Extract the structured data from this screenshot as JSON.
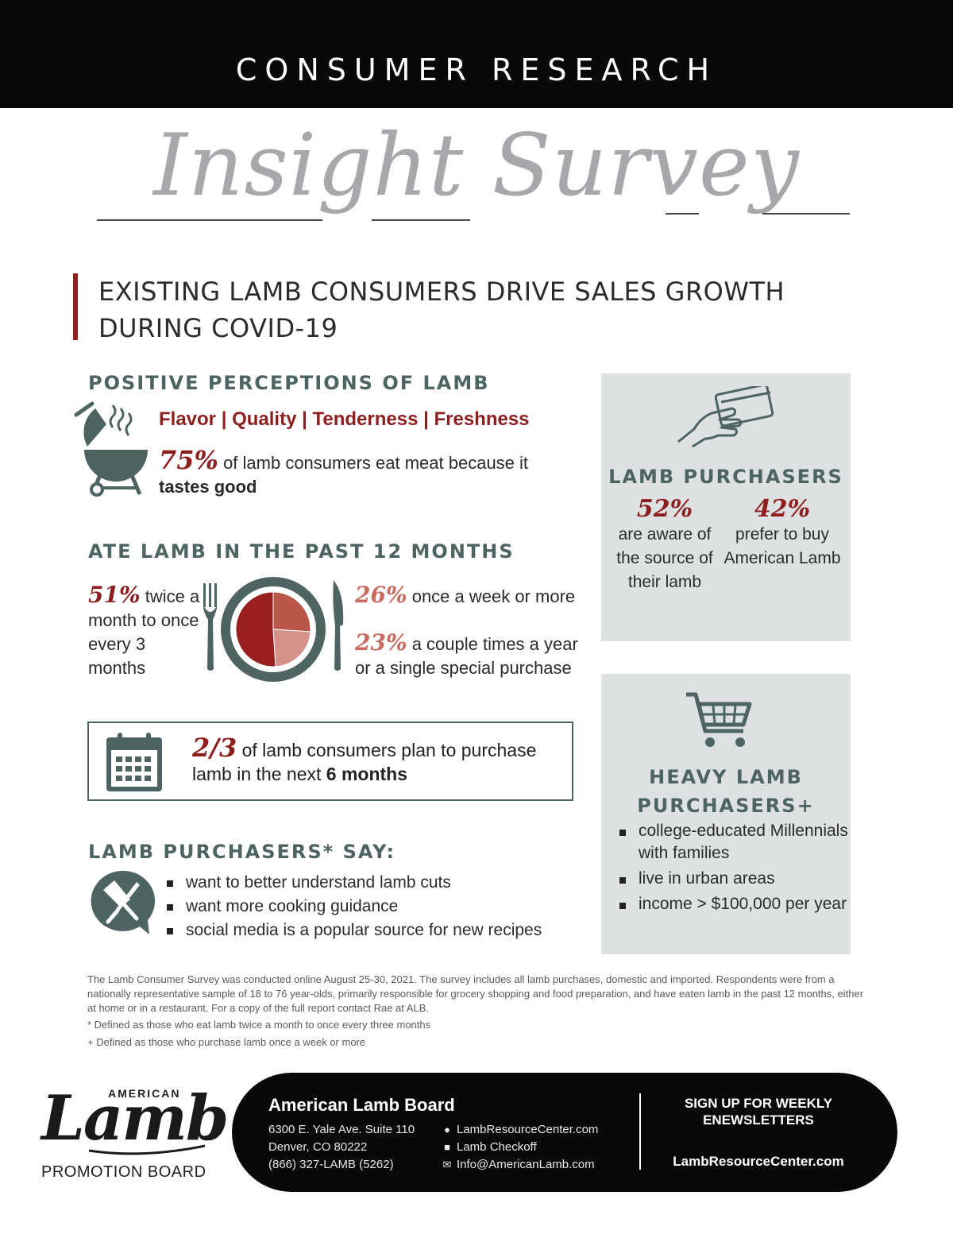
{
  "header": {
    "kicker": "CONSUMER RESEARCH",
    "title": "Insight Survey"
  },
  "headline": {
    "line1": "EXISTING LAMB CONSUMERS DRIVE SALES GROWTH",
    "line2": "DURING COVID-19"
  },
  "perceptions": {
    "heading": "POSITIVE PERCEPTIONS OF LAMB",
    "attributes": "Flavor | Quality | Tenderness | Freshness",
    "stat_pct": "75%",
    "stat_text": "of lamb consumers eat meat because it",
    "stat_bold": "tastes good"
  },
  "ate": {
    "heading": "ATE LAMB IN THE PAST 12 MONTHS",
    "left_pct": "51%",
    "left_word": "twice",
    "left_rest": "a month to once every 3 months",
    "r1_pct": "26%",
    "r1_text": "once a week or more",
    "r2_pct": "23%",
    "r2_text": "a couple times a year or a single special purchase"
  },
  "chart_data": {
    "type": "pie",
    "categories": [
      "twice a month to once every 3 months",
      "once a week or more",
      "a couple times a year or a single special purchase"
    ],
    "values": [
      51,
      26,
      23
    ],
    "colors": [
      "#9a1f1f",
      "#b9574a",
      "#d6918a"
    ]
  },
  "plan": {
    "fraction": "2/3",
    "text": "of lamb consumers plan to purchase lamb in the next",
    "bold": "6 months"
  },
  "say": {
    "heading": "LAMB PURCHASERS* SAY:",
    "items": [
      "want to better understand lamb cuts",
      "want more cooking guidance",
      "social media is a popular source for new recipes"
    ]
  },
  "card_purchasers": {
    "heading": "LAMB PURCHASERS",
    "stat1_pct": "52%",
    "stat1_text": "are aware of the source of their lamb",
    "stat2_pct": "42%",
    "stat2_text": "prefer to buy American Lamb"
  },
  "card_heavy": {
    "heading_line1": "HEAVY LAMB",
    "heading_line2": "PURCHASERS+",
    "items": [
      "college-educated Millennials with families",
      "live in urban areas",
      "income > $100,000 per year"
    ]
  },
  "footnotes": {
    "methodology": "The Lamb Consumer Survey was conducted online August 25-30, 2021. The survey includes all lamb purchases, domestic and imported. Respondents were from a nationally representative sample of 18 to 76 year-olds, primarily responsible for grocery shopping and food preparation, and have eaten lamb in the past 12 months, either at home or in a restaurant. For a copy of the full report contact Rae at ALB.",
    "asterisk": "* Defined as those who eat lamb twice a month to once every three months",
    "plus": "+ Defined as those who purchase lamb once a week or more"
  },
  "brand": {
    "top": "AMERICAN",
    "script": "Lamb",
    "bottom": "PROMOTION BOARD"
  },
  "contact": {
    "org": "American Lamb Board",
    "address1": "6300 E. Yale Ave. Suite 110",
    "address2": "Denver, CO 80222",
    "phone": "(866) 327-LAMB (5262)",
    "web": "LambResourceCenter.com",
    "facebook": "Lamb Checkoff",
    "email": "Info@AmericanLamb.com",
    "signup": "SIGN UP FOR WEEKLY ENEWSLETTERS",
    "signup_url": "LambResourceCenter.com"
  },
  "colors": {
    "accent_red": "#8d1f1f",
    "slate": "#4d6462",
    "card_gray": "#dde1e2",
    "header_black": "#08090b"
  }
}
